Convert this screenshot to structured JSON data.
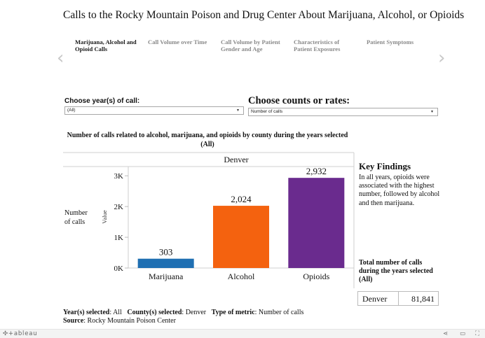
{
  "title": "Calls to the Rocky Mountain Poison and Drug Center About Marijuana, Alcohol, or Opioids",
  "nav": {
    "prev_icon": "chevron-left-icon",
    "next_icon": "chevron-right-icon",
    "prev_glyph": "‹",
    "next_glyph": "›"
  },
  "tabs": [
    {
      "label": "Marijuana, Alcohol and Opioid Calls",
      "active": true
    },
    {
      "label": "Call Volume over Time",
      "active": false
    },
    {
      "label": "Call Volume by Patient Gender and Age",
      "active": false
    },
    {
      "label": "Characteristics of Patient Exposures",
      "active": false
    },
    {
      "label": "Patient Symptoms",
      "active": false
    }
  ],
  "controls": {
    "year_label": "Choose year(s) of call:",
    "year_value": "(All)",
    "metric_label": "Choose counts or rates:",
    "metric_value": "Number of calls",
    "caret": "▾"
  },
  "chart_title": "Number of calls related to alcohol, marijuana, and opioids by county during the years selected (All)",
  "chart_data": {
    "type": "bar",
    "panel_header": "Denver",
    "categories": [
      "Marijuana",
      "Alcohol",
      "Opioids"
    ],
    "values": [
      303,
      2024,
      2932
    ],
    "data_labels": [
      "303",
      "2,024",
      "2,932"
    ],
    "colors": [
      "#1f6fb2",
      "#f4620f",
      "#6a2b8e"
    ],
    "ylabel": "Number of calls",
    "axis_name": "Value",
    "yticks": [
      0,
      1000,
      2000,
      3000
    ],
    "ytick_labels": [
      "0K",
      "1K",
      "2K",
      "3K"
    ],
    "ylim": [
      0,
      3300
    ]
  },
  "key_findings": {
    "title": "Key Findings",
    "body": "In all years, opioids were associated with the highest number, followed by alcohol and then marijuana."
  },
  "total": {
    "label": "Total number of calls during the years selected (All)",
    "county": "Denver",
    "value": "81,841"
  },
  "footer": {
    "year_label": "Year(s) selected",
    "year_value": ": All",
    "county_label": "County(s) selected",
    "county_value": ": Denver",
    "metric_label": "Type of metric",
    "metric_value": ": Number of calls",
    "source_label": "Source",
    "source_value": ": Rocky Mountain Poison Center"
  },
  "tableau": {
    "logo": "✣+ableau",
    "share_icon": "share-icon",
    "share_glyph": "⋖",
    "comment_icon": "comment-icon",
    "comment_glyph": "▭",
    "fullscreen_icon": "fullscreen-icon",
    "fullscreen_glyph": "⛶"
  }
}
